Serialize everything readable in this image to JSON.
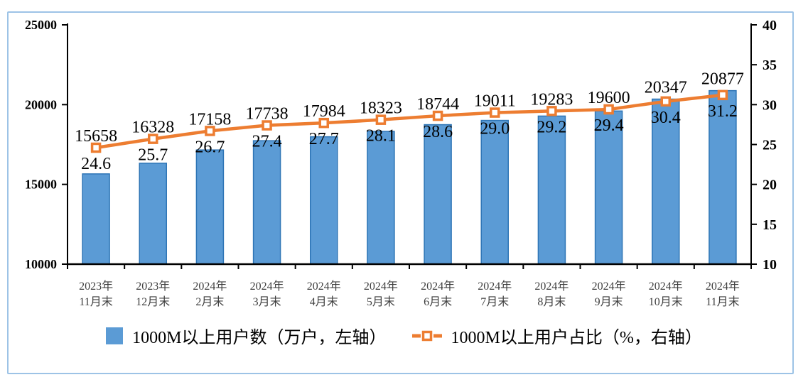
{
  "chart_data": {
    "type": "bar",
    "subtype": "bar-line-combo",
    "categories": [
      [
        "2023年",
        "11月末"
      ],
      [
        "2023年",
        "12月末"
      ],
      [
        "2024年",
        "2月末"
      ],
      [
        "2024年",
        "3月末"
      ],
      [
        "2024年",
        "4月末"
      ],
      [
        "2024年",
        "5月末"
      ],
      [
        "2024年",
        "6月末"
      ],
      [
        "2024年",
        "7月末"
      ],
      [
        "2024年",
        "8月末"
      ],
      [
        "2024年",
        "9月末"
      ],
      [
        "2024年",
        "10月末"
      ],
      [
        "2024年",
        "11月末"
      ]
    ],
    "series": [
      {
        "name": "1000M以上用户数（万户，左轴）",
        "chart_type": "bar",
        "axis": "left",
        "color": "#5B9BD5",
        "border_color": "#2E75B6",
        "values": [
          15658,
          16328,
          17158,
          17738,
          17984,
          18323,
          18744,
          19011,
          19283,
          19600,
          20347,
          20877
        ]
      },
      {
        "name": "1000M以上用户占比（%，右轴）",
        "chart_type": "line",
        "axis": "right",
        "color": "#ED7D31",
        "marker": "hollow-square",
        "values": [
          24.6,
          25.7,
          26.7,
          27.4,
          27.7,
          28.1,
          28.6,
          29.0,
          29.2,
          29.4,
          30.4,
          31.2
        ]
      }
    ],
    "left_axis": {
      "min": 10000,
      "max": 25000,
      "tick_labels": [
        "10000",
        "15000",
        "20000",
        "25000"
      ]
    },
    "right_axis": {
      "min": 10,
      "max": 40,
      "tick_labels": [
        "10",
        "15",
        "20",
        "25",
        "30",
        "35",
        "40"
      ]
    },
    "grid": false,
    "data_labels": true,
    "legend_position": "bottom",
    "axis_color": "#000000",
    "x_label_color": "#3F3F3F",
    "frame_border_color": "#9DC3E6"
  }
}
